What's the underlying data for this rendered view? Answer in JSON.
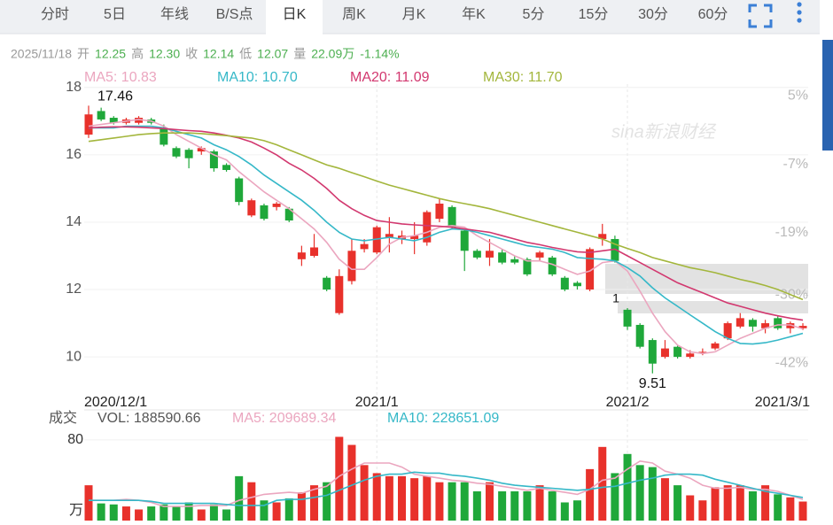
{
  "tabs": [
    "分时",
    "5日",
    "年线",
    "B/S点",
    "日K",
    "周K",
    "月K",
    "年K",
    "5分",
    "15分",
    "30分",
    "60分"
  ],
  "active_tab": 4,
  "quote": [
    {
      "text": "2025/11/18",
      "color": "#999999"
    },
    {
      "text": "开",
      "color": "#999999"
    },
    {
      "text": "12.25",
      "color": "#4caf50"
    },
    {
      "text": "高",
      "color": "#999999"
    },
    {
      "text": "12.30",
      "color": "#4caf50"
    },
    {
      "text": "收",
      "color": "#999999"
    },
    {
      "text": "12.14",
      "color": "#4caf50"
    },
    {
      "text": "低",
      "color": "#999999"
    },
    {
      "text": "12.07",
      "color": "#4caf50"
    },
    {
      "text": "量",
      "color": "#999999"
    },
    {
      "text": "22.09万",
      "color": "#4caf50"
    },
    {
      "text": "-1.14%",
      "color": "#4caf50"
    }
  ],
  "watermark": "sina新浪财经",
  "chart_data": [
    {
      "type": "candlestick",
      "up_color": "#e8312b",
      "down_color": "#1fa83a",
      "categories": [
        "2020/12/1",
        null,
        null,
        null,
        null,
        null,
        null,
        null,
        null,
        null,
        null,
        null,
        null,
        null,
        null,
        null,
        null,
        null,
        null,
        null,
        null,
        null,
        null,
        "2021/1",
        null,
        null,
        null,
        null,
        null,
        null,
        null,
        null,
        null,
        null,
        null,
        null,
        null,
        null,
        null,
        null,
        null,
        null,
        null,
        "2021/2",
        null,
        null,
        null,
        null,
        null,
        null,
        null,
        null,
        null,
        null,
        null,
        null,
        null,
        "2021/3/1"
      ],
      "open": [
        16.6,
        17.3,
        17.1,
        16.95,
        16.95,
        17.05,
        16.8,
        16.2,
        16.15,
        16.1,
        16.1,
        15.7,
        15.3,
        14.2,
        14.5,
        14.45,
        14.4,
        12.9,
        13.0,
        12.35,
        11.3,
        12.25,
        13.2,
        13.1,
        13.55,
        13.5,
        13.5,
        13.4,
        14.1,
        14.45,
        13.75,
        13.15,
        12.95,
        13.1,
        12.9,
        12.9,
        12.95,
        12.95,
        12.35,
        12.2,
        12.0,
        13.5,
        13.5,
        11.4,
        10.95,
        10.5,
        10.0,
        10.3,
        10.0,
        10.1,
        10.25,
        10.55,
        10.9,
        11.1,
        10.85,
        11.15,
        10.85,
        10.85
      ],
      "high": [
        17.46,
        17.4,
        17.15,
        17.1,
        17.15,
        17.1,
        16.9,
        16.25,
        16.2,
        16.25,
        16.15,
        15.75,
        15.35,
        14.7,
        14.55,
        14.6,
        14.45,
        13.3,
        13.65,
        12.4,
        12.6,
        13.5,
        13.5,
        13.9,
        14.15,
        13.75,
        14.0,
        14.35,
        14.7,
        14.5,
        13.8,
        13.2,
        13.5,
        13.2,
        13.0,
        12.95,
        13.15,
        13.0,
        12.4,
        12.25,
        13.25,
        13.95,
        13.6,
        11.45,
        11.0,
        10.55,
        10.5,
        10.35,
        10.2,
        10.25,
        10.45,
        11.05,
        11.3,
        11.15,
        11.1,
        11.2,
        11.05,
        11.0
      ],
      "low": [
        16.5,
        17.0,
        16.9,
        16.9,
        16.9,
        16.9,
        16.25,
        15.9,
        15.6,
        16.0,
        15.5,
        15.5,
        14.5,
        14.15,
        14.05,
        14.35,
        14.0,
        12.7,
        12.95,
        11.95,
        11.25,
        12.15,
        13.1,
        13.05,
        13.1,
        13.35,
        13.05,
        13.3,
        14.0,
        13.8,
        12.55,
        12.9,
        12.7,
        12.75,
        12.75,
        12.4,
        12.85,
        12.4,
        11.95,
        12.0,
        11.95,
        13.3,
        12.8,
        10.8,
        10.25,
        9.51,
        9.95,
        9.95,
        9.95,
        10.05,
        10.2,
        10.5,
        10.85,
        10.75,
        10.7,
        10.8,
        10.7,
        10.8
      ],
      "close": [
        17.2,
        17.05,
        16.95,
        17.05,
        17.1,
        16.95,
        16.3,
        15.95,
        15.9,
        16.2,
        15.6,
        15.55,
        14.6,
        14.65,
        14.1,
        14.55,
        14.05,
        13.1,
        13.25,
        12.0,
        12.4,
        13.15,
        13.35,
        13.85,
        13.65,
        13.6,
        13.6,
        14.3,
        14.55,
        13.85,
        13.15,
        12.95,
        13.15,
        12.8,
        12.8,
        12.45,
        13.1,
        12.45,
        12.0,
        12.1,
        13.2,
        13.65,
        12.85,
        10.9,
        10.3,
        9.8,
        10.25,
        10.0,
        10.1,
        10.15,
        10.4,
        11.0,
        11.15,
        10.9,
        11.0,
        10.85,
        11.0,
        10.92
      ],
      "series": [
        {
          "name": "MA5: 10.83",
          "color": "#eba6bf",
          "values": [
            16.85,
            16.9,
            16.95,
            17.0,
            17.05,
            17.0,
            16.85,
            16.6,
            16.4,
            16.2,
            16.0,
            15.85,
            15.5,
            15.2,
            14.9,
            14.65,
            14.4,
            14.1,
            13.8,
            13.4,
            12.9,
            12.6,
            12.6,
            12.95,
            13.35,
            13.55,
            13.6,
            13.7,
            13.85,
            13.9,
            13.85,
            13.6,
            13.4,
            13.2,
            13.0,
            12.85,
            12.85,
            12.75,
            12.6,
            12.45,
            12.55,
            12.8,
            12.85,
            12.55,
            11.95,
            11.3,
            10.75,
            10.35,
            10.15,
            10.1,
            10.15,
            10.35,
            10.55,
            10.7,
            10.85,
            10.95,
            10.95,
            10.83
          ]
        },
        {
          "name": "MA10: 10.70",
          "color": "#35b8c8",
          "values": [
            16.8,
            16.8,
            16.8,
            16.85,
            16.85,
            16.85,
            16.8,
            16.7,
            16.6,
            16.5,
            16.3,
            16.15,
            15.95,
            15.7,
            15.4,
            15.15,
            14.9,
            14.65,
            14.35,
            14.0,
            13.7,
            13.5,
            13.45,
            13.5,
            13.55,
            13.5,
            13.45,
            13.55,
            13.7,
            13.8,
            13.78,
            13.7,
            13.6,
            13.5,
            13.4,
            13.3,
            13.25,
            13.2,
            13.1,
            12.95,
            12.92,
            12.9,
            12.85,
            12.65,
            12.4,
            12.05,
            11.75,
            11.5,
            11.25,
            11.0,
            10.75,
            10.55,
            10.4,
            10.38,
            10.42,
            10.5,
            10.6,
            10.7
          ]
        },
        {
          "name": "MA20: 11.09",
          "color": "#d2386f",
          "values": [
            16.8,
            16.82,
            16.83,
            16.83,
            16.82,
            16.8,
            16.78,
            16.75,
            16.72,
            16.7,
            16.65,
            16.58,
            16.5,
            16.38,
            16.2,
            16.0,
            15.75,
            15.55,
            15.3,
            15.0,
            14.65,
            14.4,
            14.2,
            14.05,
            14.0,
            13.95,
            13.92,
            13.9,
            13.88,
            13.85,
            13.8,
            13.75,
            13.7,
            13.6,
            13.5,
            13.4,
            13.33,
            13.25,
            13.18,
            13.12,
            13.1,
            13.15,
            13.2,
            13.0,
            12.8,
            12.6,
            12.4,
            12.2,
            12.05,
            11.9,
            11.75,
            11.6,
            11.5,
            11.4,
            11.3,
            11.22,
            11.15,
            11.09
          ]
        },
        {
          "name": "MA30: 11.70",
          "color": "#a3b63c",
          "values": [
            16.4,
            16.45,
            16.5,
            16.55,
            16.6,
            16.63,
            16.65,
            16.65,
            16.65,
            16.63,
            16.6,
            16.57,
            16.53,
            16.5,
            16.42,
            16.3,
            16.15,
            16.0,
            15.85,
            15.7,
            15.6,
            15.47,
            15.35,
            15.22,
            15.1,
            15.0,
            14.9,
            14.8,
            14.7,
            14.62,
            14.55,
            14.48,
            14.4,
            14.3,
            14.2,
            14.1,
            14.0,
            13.9,
            13.8,
            13.7,
            13.6,
            13.5,
            13.35,
            13.22,
            13.1,
            12.95,
            12.85,
            12.75,
            12.65,
            12.58,
            12.5,
            12.4,
            12.3,
            12.22,
            12.12,
            12.0,
            11.85,
            11.7
          ]
        }
      ],
      "ylim": [
        9.03,
        18.1
      ],
      "yticks": [
        10,
        12,
        14,
        16,
        18
      ],
      "y2lim": [
        -46.6,
        7.1
      ],
      "y2ticks": [
        {
          "value": 5,
          "label": "5%"
        },
        {
          "value": -7,
          "label": "-7%"
        },
        {
          "value": -19,
          "label": "-19%"
        },
        {
          "value": -30,
          "label": "-30%"
        },
        {
          "value": -42,
          "label": "-42%"
        }
      ],
      "grid": true,
      "marker_text": "1"
    },
    {
      "type": "bar",
      "title": "成交",
      "subtitle": "VOL: 188590.66",
      "unit": "万",
      "values": [
        35,
        17,
        16,
        14,
        11,
        14,
        16,
        14,
        18,
        11,
        16,
        11,
        44,
        38,
        20,
        18,
        22,
        28,
        35,
        38,
        83,
        75,
        55,
        47,
        44,
        44,
        42,
        44,
        38,
        38,
        38,
        29,
        38,
        29,
        29,
        29,
        35,
        29,
        18,
        20,
        51,
        73,
        47,
        66,
        55,
        53,
        42,
        35,
        25,
        20,
        33,
        35,
        35,
        29,
        35,
        26,
        23,
        18.86
      ],
      "series": [
        {
          "name": "MA5: 209689.34",
          "color": "#eba6bf",
          "values": [
            20,
            20,
            20,
            21,
            20,
            18,
            14,
            14,
            14,
            15,
            15,
            15,
            20,
            23,
            26,
            27,
            28,
            27,
            31,
            34,
            44,
            51,
            57,
            57,
            57,
            53,
            46,
            44,
            42,
            40,
            39,
            37,
            36,
            34,
            32,
            30,
            32,
            30,
            28,
            26,
            31,
            40,
            42,
            51,
            59,
            57,
            49,
            46,
            42,
            35,
            32,
            32,
            33,
            31,
            31,
            29,
            25,
            20.97
          ]
        },
        {
          "name": "MA10: 228651.09",
          "color": "#35b8c8",
          "values": [
            20,
            20,
            20,
            20,
            20,
            19,
            17,
            17,
            17,
            17,
            17,
            16,
            15,
            15,
            15,
            20,
            21,
            21,
            23,
            25,
            30,
            35,
            40,
            44,
            46,
            46,
            48,
            47,
            47,
            45,
            44,
            42,
            40,
            37,
            35,
            34,
            33,
            32,
            31,
            30,
            31,
            33,
            34,
            37,
            40,
            42,
            45,
            46,
            46,
            45,
            41,
            38,
            35,
            32,
            29,
            27,
            25,
            22.87
          ]
        }
      ],
      "ylim": [
        0,
        86
      ],
      "yticks": [
        80
      ]
    }
  ]
}
